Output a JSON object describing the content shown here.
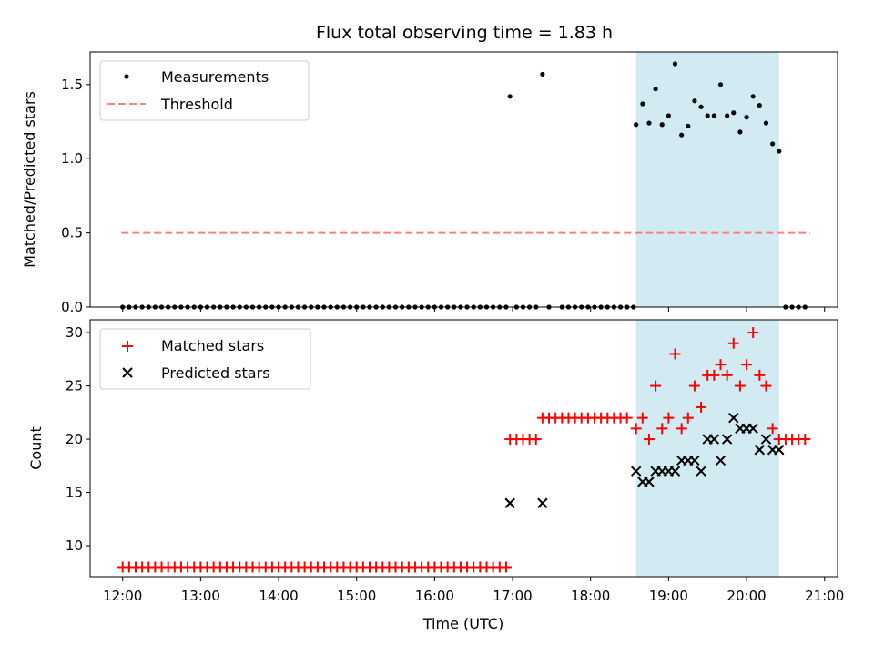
{
  "chart_data": [
    {
      "panel": "top",
      "type": "scatter",
      "title": "Flux total observing time = 1.83 h",
      "xlabel": "",
      "ylabel": "Matched/Predicted stars",
      "xlim": [
        "11:35",
        "21:10"
      ],
      "ylim": [
        0,
        1.72
      ],
      "y_ticks": [
        "0.0",
        "0.5",
        "1.0",
        "1.5"
      ],
      "legend_position": "top-left",
      "grid": false,
      "highlight_span": {
        "start": "18:35",
        "end": "20:25",
        "color": "#add8e6"
      },
      "series": [
        {
          "name": "Measurements",
          "color": "#000000",
          "marker": "dot",
          "points": [
            [
              "12:00",
              0
            ],
            [
              "12:05",
              0
            ],
            [
              "12:10",
              0
            ],
            [
              "12:15",
              0
            ],
            [
              "12:20",
              0
            ],
            [
              "12:25",
              0
            ],
            [
              "12:30",
              0
            ],
            [
              "12:35",
              0
            ],
            [
              "12:40",
              0
            ],
            [
              "12:45",
              0
            ],
            [
              "12:50",
              0
            ],
            [
              "12:55",
              0
            ],
            [
              "13:00",
              0
            ],
            [
              "13:05",
              0
            ],
            [
              "13:10",
              0
            ],
            [
              "13:15",
              0
            ],
            [
              "13:20",
              0
            ],
            [
              "13:25",
              0
            ],
            [
              "13:30",
              0
            ],
            [
              "13:35",
              0
            ],
            [
              "13:40",
              0
            ],
            [
              "13:45",
              0
            ],
            [
              "13:50",
              0
            ],
            [
              "13:55",
              0
            ],
            [
              "14:00",
              0
            ],
            [
              "14:05",
              0
            ],
            [
              "14:10",
              0
            ],
            [
              "14:15",
              0
            ],
            [
              "14:20",
              0
            ],
            [
              "14:25",
              0
            ],
            [
              "14:30",
              0
            ],
            [
              "14:35",
              0
            ],
            [
              "14:40",
              0
            ],
            [
              "14:45",
              0
            ],
            [
              "14:50",
              0
            ],
            [
              "14:55",
              0
            ],
            [
              "15:00",
              0
            ],
            [
              "15:05",
              0
            ],
            [
              "15:10",
              0
            ],
            [
              "15:15",
              0
            ],
            [
              "15:20",
              0
            ],
            [
              "15:25",
              0
            ],
            [
              "15:30",
              0
            ],
            [
              "15:35",
              0
            ],
            [
              "15:40",
              0
            ],
            [
              "15:45",
              0
            ],
            [
              "15:50",
              0
            ],
            [
              "15:55",
              0
            ],
            [
              "16:00",
              0
            ],
            [
              "16:05",
              0
            ],
            [
              "16:10",
              0
            ],
            [
              "16:15",
              0
            ],
            [
              "16:20",
              0
            ],
            [
              "16:25",
              0
            ],
            [
              "16:30",
              0
            ],
            [
              "16:35",
              0
            ],
            [
              "16:40",
              0
            ],
            [
              "16:45",
              0
            ],
            [
              "16:50",
              0
            ],
            [
              "16:55",
              0
            ],
            [
              "16:58",
              1.42
            ],
            [
              "17:03",
              0
            ],
            [
              "17:08",
              0
            ],
            [
              "17:13",
              0
            ],
            [
              "17:18",
              0
            ],
            [
              "17:23",
              1.57
            ],
            [
              "17:28",
              0
            ],
            [
              "17:38",
              0
            ],
            [
              "17:43",
              0
            ],
            [
              "17:48",
              0
            ],
            [
              "17:53",
              0
            ],
            [
              "17:58",
              0
            ],
            [
              "18:03",
              0
            ],
            [
              "18:08",
              0
            ],
            [
              "18:13",
              0
            ],
            [
              "18:18",
              0
            ],
            [
              "18:23",
              0
            ],
            [
              "18:28",
              0
            ],
            [
              "18:33",
              0
            ],
            [
              "18:35",
              1.23
            ],
            [
              "18:40",
              1.37
            ],
            [
              "18:45",
              1.24
            ],
            [
              "18:50",
              1.47
            ],
            [
              "18:55",
              1.23
            ],
            [
              "19:00",
              1.29
            ],
            [
              "19:05",
              1.64
            ],
            [
              "19:10",
              1.16
            ],
            [
              "19:15",
              1.22
            ],
            [
              "19:20",
              1.39
            ],
            [
              "19:25",
              1.35
            ],
            [
              "19:30",
              1.29
            ],
            [
              "19:35",
              1.29
            ],
            [
              "19:40",
              1.5
            ],
            [
              "19:45",
              1.29
            ],
            [
              "19:50",
              1.31
            ],
            [
              "19:55",
              1.18
            ],
            [
              "20:00",
              1.28
            ],
            [
              "20:05",
              1.42
            ],
            [
              "20:10",
              1.36
            ],
            [
              "20:15",
              1.24
            ],
            [
              "20:20",
              1.1
            ],
            [
              "20:25",
              1.05
            ],
            [
              "20:30",
              0
            ],
            [
              "20:35",
              0
            ],
            [
              "20:40",
              0
            ],
            [
              "20:45",
              0
            ]
          ]
        },
        {
          "name": "Threshold",
          "color": "#ff7f7f",
          "style": "dashed",
          "points": [
            [
              "11:59",
              0.5
            ],
            [
              "20:49",
              0.5
            ]
          ]
        }
      ]
    },
    {
      "panel": "bottom",
      "type": "scatter",
      "title": "",
      "xlabel": "Time (UTC)",
      "ylabel": "Count",
      "xlim": [
        "11:35",
        "21:10"
      ],
      "ylim": [
        7.1,
        31.2
      ],
      "x_ticks": [
        "12:00",
        "13:00",
        "14:00",
        "15:00",
        "16:00",
        "17:00",
        "18:00",
        "19:00",
        "20:00",
        "21:00"
      ],
      "y_ticks": [
        "10",
        "15",
        "20",
        "25",
        "30"
      ],
      "legend_position": "top-left",
      "grid": false,
      "highlight_span": {
        "start": "18:35",
        "end": "20:25",
        "color": "#add8e6"
      },
      "series": [
        {
          "name": "Matched stars",
          "color": "#ff0000",
          "marker": "plus",
          "points": [
            [
              "12:00",
              8
            ],
            [
              "12:05",
              8
            ],
            [
              "12:10",
              8
            ],
            [
              "12:15",
              8
            ],
            [
              "12:20",
              8
            ],
            [
              "12:25",
              8
            ],
            [
              "12:30",
              8
            ],
            [
              "12:35",
              8
            ],
            [
              "12:40",
              8
            ],
            [
              "12:45",
              8
            ],
            [
              "12:50",
              8
            ],
            [
              "12:55",
              8
            ],
            [
              "13:00",
              8
            ],
            [
              "13:05",
              8
            ],
            [
              "13:10",
              8
            ],
            [
              "13:15",
              8
            ],
            [
              "13:20",
              8
            ],
            [
              "13:25",
              8
            ],
            [
              "13:30",
              8
            ],
            [
              "13:35",
              8
            ],
            [
              "13:40",
              8
            ],
            [
              "13:45",
              8
            ],
            [
              "13:50",
              8
            ],
            [
              "13:55",
              8
            ],
            [
              "14:00",
              8
            ],
            [
              "14:05",
              8
            ],
            [
              "14:10",
              8
            ],
            [
              "14:15",
              8
            ],
            [
              "14:20",
              8
            ],
            [
              "14:25",
              8
            ],
            [
              "14:30",
              8
            ],
            [
              "14:35",
              8
            ],
            [
              "14:40",
              8
            ],
            [
              "14:45",
              8
            ],
            [
              "14:50",
              8
            ],
            [
              "14:55",
              8
            ],
            [
              "15:00",
              8
            ],
            [
              "15:05",
              8
            ],
            [
              "15:10",
              8
            ],
            [
              "15:15",
              8
            ],
            [
              "15:20",
              8
            ],
            [
              "15:25",
              8
            ],
            [
              "15:30",
              8
            ],
            [
              "15:35",
              8
            ],
            [
              "15:40",
              8
            ],
            [
              "15:45",
              8
            ],
            [
              "15:50",
              8
            ],
            [
              "15:55",
              8
            ],
            [
              "16:00",
              8
            ],
            [
              "16:05",
              8
            ],
            [
              "16:10",
              8
            ],
            [
              "16:15",
              8
            ],
            [
              "16:20",
              8
            ],
            [
              "16:25",
              8
            ],
            [
              "16:30",
              8
            ],
            [
              "16:35",
              8
            ],
            [
              "16:40",
              8
            ],
            [
              "16:45",
              8
            ],
            [
              "16:50",
              8
            ],
            [
              "16:55",
              8
            ],
            [
              "16:58",
              20
            ],
            [
              "17:03",
              20
            ],
            [
              "17:08",
              20
            ],
            [
              "17:13",
              20
            ],
            [
              "17:18",
              20
            ],
            [
              "17:23",
              22
            ],
            [
              "17:28",
              22
            ],
            [
              "17:33",
              22
            ],
            [
              "17:38",
              22
            ],
            [
              "17:43",
              22
            ],
            [
              "17:48",
              22
            ],
            [
              "17:53",
              22
            ],
            [
              "17:58",
              22
            ],
            [
              "18:03",
              22
            ],
            [
              "18:08",
              22
            ],
            [
              "18:13",
              22
            ],
            [
              "18:18",
              22
            ],
            [
              "18:23",
              22
            ],
            [
              "18:28",
              22
            ],
            [
              "18:35",
              21
            ],
            [
              "18:40",
              22
            ],
            [
              "18:45",
              20
            ],
            [
              "18:50",
              25
            ],
            [
              "18:55",
              21
            ],
            [
              "19:00",
              22
            ],
            [
              "19:05",
              28
            ],
            [
              "19:10",
              21
            ],
            [
              "19:15",
              22
            ],
            [
              "19:20",
              25
            ],
            [
              "19:25",
              23
            ],
            [
              "19:30",
              26
            ],
            [
              "19:35",
              26
            ],
            [
              "19:40",
              27
            ],
            [
              "19:45",
              26
            ],
            [
              "19:50",
              29
            ],
            [
              "19:55",
              25
            ],
            [
              "20:00",
              27
            ],
            [
              "20:05",
              30
            ],
            [
              "20:10",
              26
            ],
            [
              "20:15",
              25
            ],
            [
              "20:20",
              21
            ],
            [
              "20:25",
              20
            ],
            [
              "20:30",
              20
            ],
            [
              "20:35",
              20
            ],
            [
              "20:40",
              20
            ],
            [
              "20:45",
              20
            ]
          ]
        },
        {
          "name": "Predicted stars",
          "color": "#000000",
          "marker": "x",
          "points": [
            [
              "16:58",
              14
            ],
            [
              "17:23",
              14
            ],
            [
              "18:35",
              17
            ],
            [
              "18:40",
              16
            ],
            [
              "18:45",
              16
            ],
            [
              "18:50",
              17
            ],
            [
              "18:55",
              17
            ],
            [
              "19:00",
              17
            ],
            [
              "19:05",
              17
            ],
            [
              "19:10",
              18
            ],
            [
              "19:15",
              18
            ],
            [
              "19:20",
              18
            ],
            [
              "19:25",
              17
            ],
            [
              "19:30",
              20
            ],
            [
              "19:35",
              20
            ],
            [
              "19:40",
              18
            ],
            [
              "19:45",
              20
            ],
            [
              "19:50",
              22
            ],
            [
              "19:55",
              21
            ],
            [
              "20:00",
              21
            ],
            [
              "20:05",
              21
            ],
            [
              "20:10",
              19
            ],
            [
              "20:15",
              20
            ],
            [
              "20:20",
              19
            ],
            [
              "20:25",
              19
            ]
          ]
        }
      ]
    }
  ]
}
